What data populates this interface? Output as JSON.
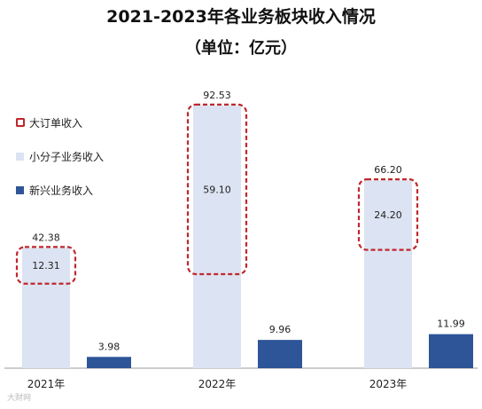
{
  "title": "2021-2023年各业务板块收入情况",
  "subtitle": "（单位：亿元）",
  "colors": {
    "small_order": "#dce3f2",
    "emerging": "#2d5597",
    "big_order_border": "#c0272d",
    "axis": "#9a9a9a",
    "label": "#222222"
  },
  "legend": [
    {
      "label": "大订单收入",
      "key": "big_order",
      "style": "dashed-box"
    },
    {
      "label": "小分子业务收入",
      "key": "small_order",
      "style": "swatch"
    },
    {
      "label": "新兴业务收入",
      "key": "emerging",
      "style": "swatch"
    }
  ],
  "chart_data": {
    "type": "bar",
    "categories": [
      "2021年",
      "2022年",
      "2023年"
    ],
    "series": [
      {
        "name": "小分子业务收入",
        "values": [
          42.38,
          92.53,
          66.2
        ]
      },
      {
        "name": "新兴业务收入",
        "values": [
          3.98,
          9.96,
          11.99
        ]
      }
    ],
    "highlight_subset": {
      "name": "大订单收入",
      "values": [
        12.31,
        59.1,
        24.2
      ],
      "within_series": "小分子业务收入"
    },
    "ylim": [
      0,
      100
    ],
    "grid": false,
    "legend_position": "top-left"
  },
  "watermark": "大财网"
}
